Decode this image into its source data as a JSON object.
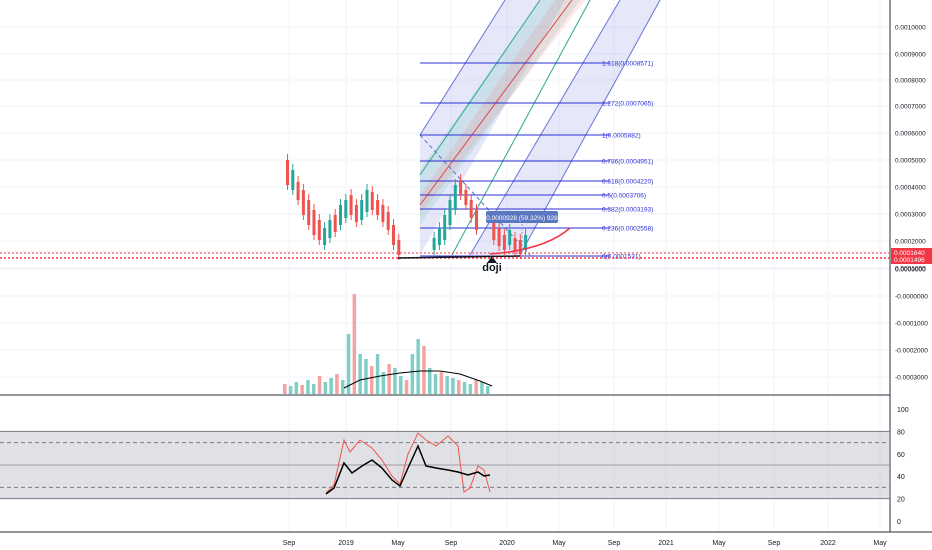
{
  "chart_data": [
    {
      "type": "candlestick",
      "panel": "price",
      "x_labels": [
        "Sep",
        "2019",
        "May",
        "Sep",
        "2020",
        "May",
        "Sep",
        "2021",
        "May",
        "Sep",
        "2022",
        "May"
      ],
      "y_ticks": [
        "0.0010000",
        "0.0009000",
        "0.0008000",
        "0.0007000",
        "0.0006000",
        "0.0005000",
        "0.0004000",
        "0.0003000",
        "0.0002000",
        "0.0001000",
        "0.0000000",
        "-0.0000000",
        "-0.0001000",
        "-0.0002000",
        "-0.0003000"
      ],
      "price_labels": [
        {
          "text": "0.0001640",
          "color": "#f23645"
        },
        {
          "text": "0.0001496",
          "color": "#f23645"
        }
      ],
      "fib_levels": [
        {
          "ratio": "1.618",
          "price": 0.0008571,
          "label": "1.618(0.0008571)"
        },
        {
          "ratio": "1.272",
          "price": 0.0007065,
          "label": "1.272(0.0007065)"
        },
        {
          "ratio": "1",
          "price": 0.0005882,
          "label": "1(0.0005882)"
        },
        {
          "ratio": "0.786",
          "price": 0.0004951,
          "label": "0.786(0.0004951)"
        },
        {
          "ratio": "0.618",
          "price": 0.000422,
          "label": "0.618(0.0004220)"
        },
        {
          "ratio": "0.5",
          "price": 0.0003706,
          "label": "0.5(0.0003706)"
        },
        {
          "ratio": "0.382",
          "price": 0.0003193,
          "label": "0.382(0.0003193)"
        },
        {
          "ratio": "0.236",
          "price": 0.0002558,
          "label": "0.236(0.0002558)"
        },
        {
          "ratio": "0",
          "price": 0.0001531,
          "label": "0(0.0001531)"
        }
      ],
      "annotations": [
        {
          "text": "doji"
        },
        {
          "text": "0.0000928 (59.32%) 928"
        }
      ],
      "colors": {
        "up": "#26a69a",
        "down": "#ef5350",
        "fib": "#2a2fd4",
        "alert": "#f23645"
      }
    },
    {
      "type": "bar",
      "panel": "volume",
      "colors": {
        "up": "#7fcfc6",
        "down": "#f4a3a3",
        "ma": "#000000"
      }
    },
    {
      "type": "line",
      "panel": "oscillator",
      "y_ticks": [
        100,
        80,
        60,
        40,
        20,
        0
      ],
      "bands": {
        "upper": 80,
        "lower": 20,
        "dashed": [
          70,
          30
        ]
      },
      "colors": {
        "main": "#000000",
        "signal": "#ef5350",
        "band": "#d1d4dc"
      }
    }
  ]
}
